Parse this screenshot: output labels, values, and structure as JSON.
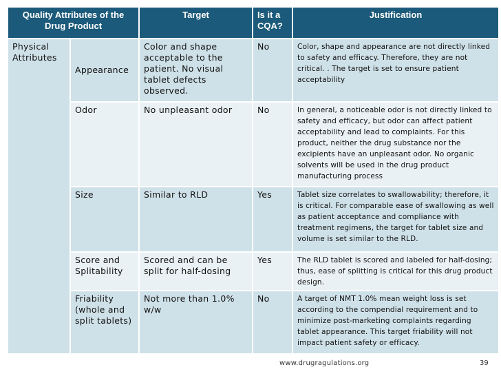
{
  "table": {
    "headers": {
      "attribute": "Quality Attributes of the Drug Product",
      "target": "Target",
      "cqa": "Is it a CQA?",
      "justification": "Justification"
    },
    "group_label": "Physical Attributes",
    "rows": [
      {
        "attribute": "Appearance",
        "target": "Color and shape acceptable to the patient. No visual tablet defects observed.",
        "cqa": "No",
        "justification": "Color, shape and appearance are not directly linked to safety and efficacy. Therefore, they are not critical. . The target is set to ensure patient acceptability"
      },
      {
        "attribute": "Odor",
        "target": "No unpleasant odor",
        "cqa": "No",
        "justification": "In general, a noticeable odor is not directly linked to safety and efficacy, but odor can affect patient acceptability and lead to complaints. For this product, neither the drug substance nor the excipients have an unpleasant odor. No organic solvents will be used in the drug product manufacturing process"
      },
      {
        "attribute": "Size",
        "target": "Similar to RLD",
        "cqa": "Yes",
        "justification": "Tablet size correlates to swallowability; therefore, it is critical. For comparable ease of swallowing as well as patient acceptance and compliance with treatment regimens, the target for tablet size and volume is set similar to the RLD."
      },
      {
        "attribute": "Score and Splitability",
        "target": "Scored and can be split for half-dosing",
        "cqa": "Yes",
        "justification": "The RLD tablet is scored and labeled for half-dosing; thus, ease of splitting is critical for this drug product design."
      },
      {
        "attribute": "Friability (whole and split tablets)",
        "target": "Not more than 1.0% w/w",
        "cqa": "No",
        "justification": "A target of NMT 1.0% mean weight loss is set according to the compendial requirement and to minimize post-marketing complaints regarding tablet appearance. This target friability will not impact patient safety or efficacy."
      }
    ]
  },
  "footer": {
    "url": "www.drugragulations.org",
    "page": "39"
  },
  "colors": {
    "header_bg": "#1b5a7a",
    "row_dark": "#cfe1e8",
    "row_light": "#e9f1f4"
  }
}
